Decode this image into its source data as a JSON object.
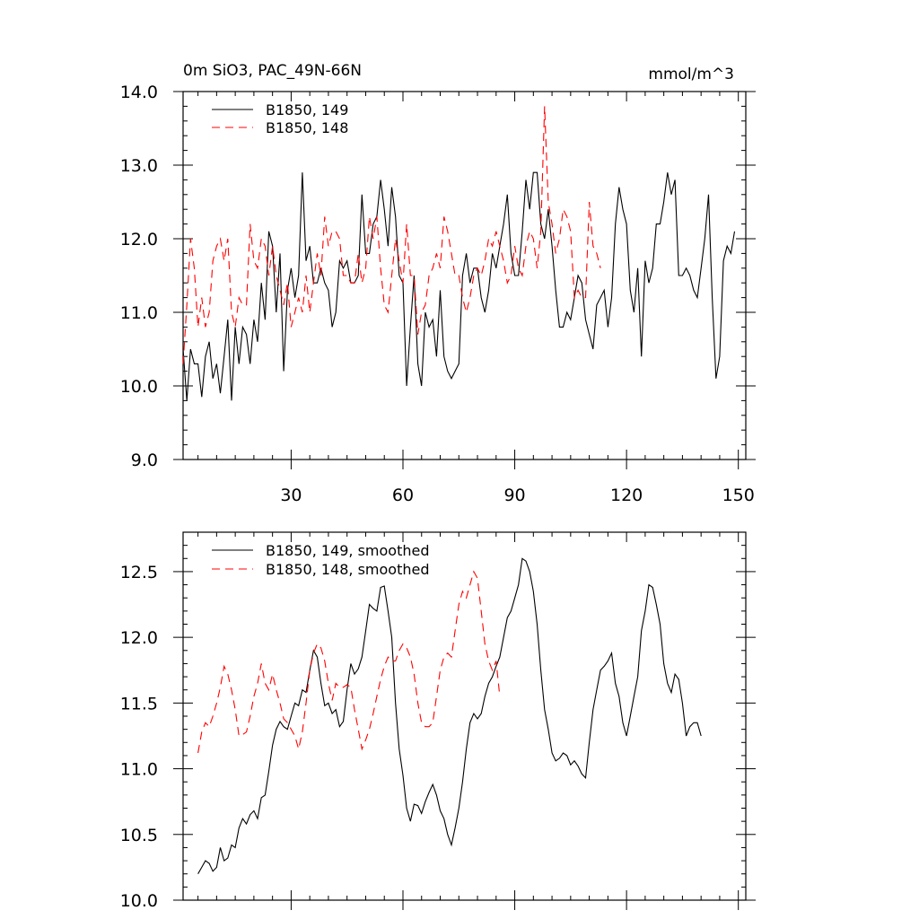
{
  "colors": {
    "series_149": "#000000",
    "series_148": "#ff0000",
    "axis": "#000000",
    "background": "#ffffff"
  },
  "chart_data": [
    {
      "type": "line",
      "title": "0m SiO3, PAC_49N-66N",
      "units": "mmol/m^3",
      "xlabel": "",
      "ylabel": "",
      "xlim": [
        1,
        152
      ],
      "ylim": [
        9.0,
        14.0
      ],
      "xticks": [
        30,
        60,
        90,
        120,
        150
      ],
      "xtick_labels": [
        "30",
        "60",
        "90",
        "120",
        "150"
      ],
      "yticks": [
        9.0,
        10.0,
        11.0,
        12.0,
        13.0,
        14.0
      ],
      "ytick_labels": [
        "9.0",
        "10.0",
        "11.0",
        "12.0",
        "13.0",
        "14.0"
      ],
      "legend": "top-left",
      "series": [
        {
          "name": "B1850, 149",
          "style": "solid",
          "x_start": 1,
          "values": [
            10.5,
            9.8,
            10.5,
            10.3,
            10.3,
            9.85,
            10.4,
            10.6,
            10.1,
            10.3,
            9.9,
            10.4,
            10.9,
            9.8,
            10.8,
            10.3,
            10.8,
            10.7,
            10.3,
            10.9,
            10.6,
            11.4,
            10.9,
            12.1,
            11.9,
            11.0,
            11.8,
            10.2,
            11.3,
            11.6,
            11.2,
            11.5,
            12.9,
            11.7,
            11.9,
            11.4,
            11.4,
            11.6,
            11.4,
            11.3,
            10.8,
            11.0,
            11.7,
            11.6,
            11.7,
            11.4,
            11.4,
            11.5,
            12.6,
            11.8,
            11.8,
            12.2,
            12.3,
            12.8,
            12.4,
            11.9,
            12.7,
            12.3,
            11.5,
            11.4,
            10.0,
            10.8,
            11.5,
            10.3,
            10.0,
            11.0,
            10.8,
            10.9,
            10.4,
            11.3,
            10.4,
            10.2,
            10.1,
            10.2,
            10.3,
            11.5,
            11.8,
            11.4,
            11.6,
            11.6,
            11.2,
            11.0,
            11.3,
            11.8,
            11.6,
            11.9,
            12.2,
            12.6,
            11.8,
            11.5,
            11.5,
            12.1,
            12.8,
            12.4,
            12.9,
            12.9,
            12.2,
            12.0,
            12.4,
            11.9,
            11.3,
            10.8,
            10.8,
            11.0,
            10.9,
            11.2,
            11.5,
            11.4,
            10.9,
            10.7,
            10.5,
            11.1,
            11.2,
            11.3,
            10.8,
            11.2,
            12.2,
            12.7,
            12.4,
            12.2,
            11.3,
            11.0,
            11.6,
            10.4,
            11.7,
            11.4,
            11.6,
            12.2,
            12.2,
            12.5,
            12.9,
            12.6,
            12.8,
            11.5,
            11.5,
            11.6,
            11.5,
            11.3,
            11.2,
            11.6,
            12.0,
            12.6,
            11.2,
            10.1,
            10.4,
            11.7,
            11.9,
            11.8,
            12.1
          ]
        },
        {
          "name": "B1850, 148",
          "style": "dashed",
          "x_start": 1,
          "values": [
            10.3,
            11.1,
            12.0,
            11.6,
            10.8,
            11.2,
            10.8,
            11.0,
            11.7,
            11.9,
            12.0,
            11.7,
            12.0,
            11.0,
            10.8,
            11.2,
            11.1,
            11.1,
            12.2,
            11.7,
            11.6,
            12.0,
            11.9,
            11.5,
            11.9,
            11.5,
            11.3,
            11.1,
            11.4,
            10.8,
            11.0,
            11.2,
            11.0,
            11.5,
            11.0,
            11.4,
            11.8,
            11.5,
            12.3,
            11.9,
            12.1,
            12.1,
            12.0,
            11.5,
            11.5,
            11.4,
            11.4,
            11.8,
            11.4,
            11.6,
            12.3,
            12.0,
            12.3,
            11.6,
            11.1,
            11.0,
            11.5,
            12.0,
            11.7,
            11.4,
            12.2,
            11.5,
            11.5,
            10.7,
            11.0,
            11.1,
            11.5,
            11.6,
            11.8,
            11.6,
            12.3,
            12.1,
            11.8,
            11.5,
            11.5,
            11.2,
            11.0,
            11.2,
            11.5,
            11.6,
            11.5,
            11.7,
            12.0,
            11.9,
            12.1,
            11.9,
            11.7,
            11.4,
            11.5,
            11.9,
            11.6,
            11.5,
            11.9,
            12.1,
            12.0,
            11.6,
            12.1,
            13.8,
            12.5,
            12.2,
            11.8,
            12.0,
            12.4,
            12.3,
            12.1,
            11.2,
            11.3,
            11.2,
            11.2,
            12.5,
            11.9,
            11.8,
            11.6
          ]
        }
      ]
    },
    {
      "type": "line",
      "title": "",
      "xlabel": "",
      "ylabel": "",
      "xlim": [
        1,
        152
      ],
      "ylim": [
        10.0,
        12.8
      ],
      "xticks": [
        30,
        60,
        90,
        120,
        150
      ],
      "yticks": [
        10.0,
        10.5,
        11.0,
        11.5,
        12.0,
        12.5
      ],
      "ytick_labels": [
        "10.0",
        "10.5",
        "11.0",
        "11.5",
        "12.0",
        "12.5"
      ],
      "legend": "top-left",
      "series": [
        {
          "name": "B1850, 149, smoothed",
          "style": "solid",
          "x_start": 5,
          "values": [
            10.2,
            10.25,
            10.3,
            10.28,
            10.22,
            10.25,
            10.4,
            10.3,
            10.32,
            10.42,
            10.4,
            10.55,
            10.62,
            10.58,
            10.65,
            10.68,
            10.62,
            10.78,
            10.8,
            10.98,
            11.18,
            11.3,
            11.36,
            11.32,
            11.3,
            11.4,
            11.5,
            11.48,
            11.6,
            11.58,
            11.75,
            11.9,
            11.85,
            11.65,
            11.48,
            11.5,
            11.42,
            11.45,
            11.32,
            11.36,
            11.6,
            11.8,
            11.72,
            11.76,
            11.85,
            12.05,
            12.25,
            12.22,
            12.2,
            12.38,
            12.39,
            12.2,
            12.0,
            11.5,
            11.15,
            10.95,
            10.7,
            10.6,
            10.73,
            10.72,
            10.66,
            10.75,
            10.82,
            10.88,
            10.8,
            10.68,
            10.62,
            10.5,
            10.42,
            10.55,
            10.7,
            10.9,
            11.15,
            11.35,
            11.42,
            11.38,
            11.42,
            11.55,
            11.65,
            11.7,
            11.78,
            11.85,
            12.0,
            12.15,
            12.2,
            12.3,
            12.4,
            12.6,
            12.58,
            12.5,
            12.35,
            12.1,
            11.75,
            11.45,
            11.3,
            11.12,
            11.06,
            11.08,
            11.12,
            11.1,
            11.03,
            11.06,
            11.02,
            10.96,
            10.93,
            11.2,
            11.45,
            11.6,
            11.75,
            11.78,
            11.82,
            11.88,
            11.65,
            11.55,
            11.35,
            11.25,
            11.4,
            11.55,
            11.7,
            12.05,
            12.2,
            12.4,
            12.38,
            12.25,
            12.1,
            11.8,
            11.65,
            11.58,
            11.72,
            11.68,
            11.5,
            11.25,
            11.32,
            11.35,
            11.35,
            11.25
          ]
        },
        {
          "name": "B1850, 148, smoothed",
          "style": "dashed",
          "x_start": 5,
          "values": [
            11.12,
            11.28,
            11.35,
            11.32,
            11.4,
            11.5,
            11.62,
            11.78,
            11.72,
            11.6,
            11.45,
            11.25,
            11.26,
            11.28,
            11.4,
            11.55,
            11.65,
            11.8,
            11.65,
            11.6,
            11.72,
            11.6,
            11.5,
            11.38,
            11.35,
            11.3,
            11.25,
            11.15,
            11.28,
            11.5,
            11.75,
            11.88,
            11.95,
            11.92,
            11.82,
            11.65,
            11.52,
            11.65,
            11.62,
            11.62,
            11.64,
            11.62,
            11.45,
            11.3,
            11.15,
            11.22,
            11.3,
            11.42,
            11.55,
            11.68,
            11.78,
            11.85,
            11.82,
            11.82,
            11.9,
            11.95,
            11.92,
            11.85,
            11.72,
            11.5,
            11.35,
            11.32,
            11.32,
            11.35,
            11.55,
            11.75,
            11.85,
            11.88,
            11.85,
            12.05,
            12.25,
            12.35,
            12.3,
            12.4,
            12.5,
            12.45,
            12.2,
            11.95,
            11.82,
            11.75,
            11.82,
            11.55
          ]
        }
      ]
    }
  ]
}
